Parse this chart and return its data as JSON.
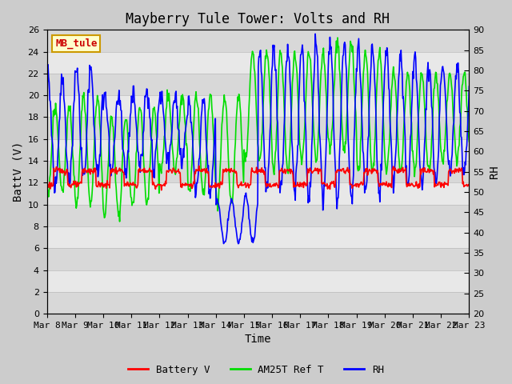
{
  "title": "Mayberry Tule Tower: Volts and RH",
  "xlabel": "Time",
  "ylabel_left": "BattV (V)",
  "ylabel_right": "RH",
  "ylim_left": [
    0,
    26
  ],
  "ylim_right": [
    20,
    90
  ],
  "xtick_labels": [
    "Mar 8",
    "Mar 9",
    "Mar 10",
    "Mar 11",
    "Mar 12",
    "Mar 13",
    "Mar 14",
    "Mar 15",
    "Mar 16",
    "Mar 17",
    "Mar 18",
    "Mar 19",
    "Mar 20",
    "Mar 21",
    "Mar 22",
    "Mar 23"
  ],
  "yticks_left": [
    0,
    2,
    4,
    6,
    8,
    10,
    12,
    14,
    16,
    18,
    20,
    22,
    24,
    26
  ],
  "yticks_right": [
    20,
    25,
    30,
    35,
    40,
    45,
    50,
    55,
    60,
    65,
    70,
    75,
    80,
    85,
    90
  ],
  "plot_bg_color": "#cccccc",
  "grid_color": "#e0e0e0",
  "station_label": "MB_tule",
  "station_label_bg": "#ffffcc",
  "station_label_border": "#cc9900",
  "legend_entries": [
    "Battery V",
    "AM25T Ref T",
    "RH"
  ],
  "legend_colors": [
    "#ff0000",
    "#00dd00",
    "#0000ff"
  ],
  "title_fontsize": 12,
  "axis_fontsize": 10,
  "tick_fontsize": 8,
  "font_family": "DejaVu Sans Mono"
}
